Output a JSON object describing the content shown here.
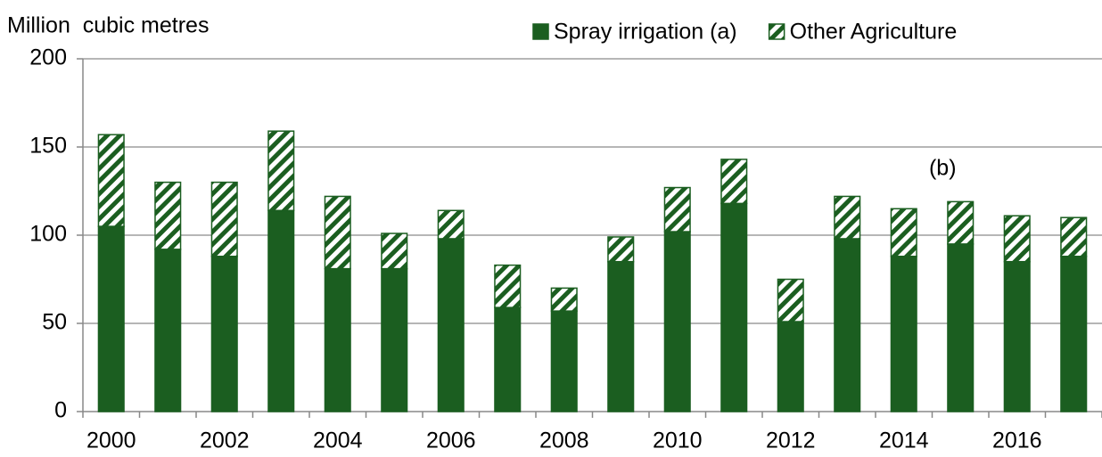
{
  "chart_data": {
    "type": "stacked-bar",
    "y_label": "Million  cubic metres",
    "annotation": "(b)",
    "categories": [
      "2000",
      null,
      "2002",
      null,
      "2004",
      null,
      "2006",
      null,
      "2008",
      null,
      "2010",
      null,
      "2012",
      null,
      "2014",
      null,
      "2016",
      null
    ],
    "series": [
      {
        "name": "Spray irrigation (a)",
        "color": "#1b5e20",
        "hatch": false,
        "values": [
          105,
          92,
          88,
          114,
          81,
          81,
          98,
          59,
          57,
          85,
          102,
          118,
          51,
          98,
          88,
          95,
          85,
          88
        ]
      },
      {
        "name": "Other Agriculture",
        "color": "#1b5e20",
        "hatch": true,
        "values": [
          52,
          38,
          42,
          45,
          41,
          20,
          16,
          24,
          13,
          14,
          25,
          25,
          24,
          24,
          27,
          24,
          26,
          22
        ]
      }
    ],
    "ylim": [
      0,
      200
    ],
    "yticks": [
      0,
      50,
      100,
      150,
      200
    ],
    "grid": true
  }
}
